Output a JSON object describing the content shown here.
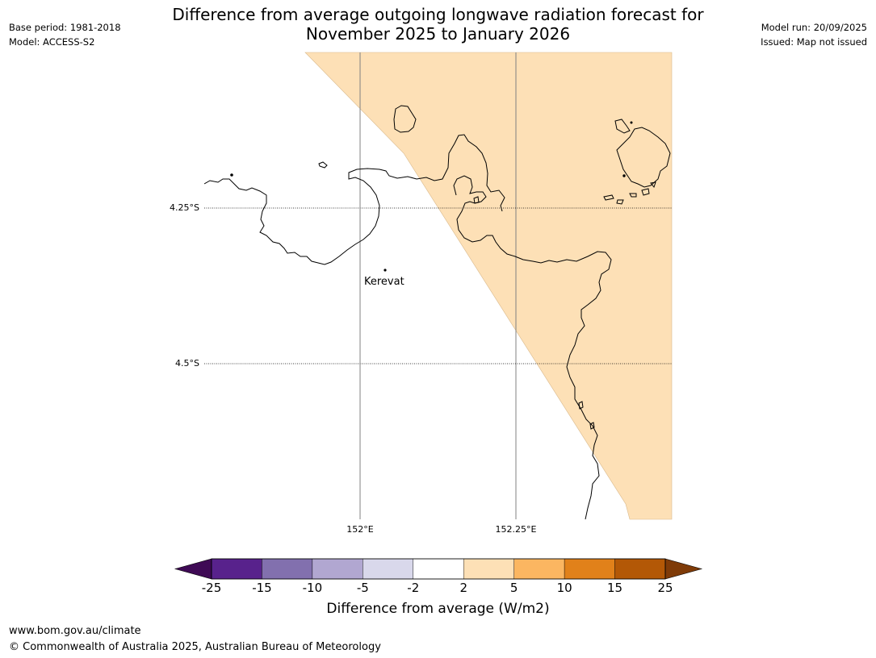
{
  "header": {
    "title_line1": "Difference from average outgoing longwave radiation forecast for",
    "title_line2": "November 2025 to January 2026",
    "base_period": "Base period: 1981-2018",
    "model": "Model: ACCESS-S2",
    "model_run": "Model run: 20/09/2025",
    "issued": "Issued: Map not issued"
  },
  "map": {
    "lat_labels": [
      "4.25°S",
      "4.5°S"
    ],
    "lon_labels": [
      "152°E",
      "152.25°E"
    ],
    "place": {
      "name": "Kerevat"
    },
    "anomaly_fill_color": "#fde0b6",
    "land_outline_color": "#000000"
  },
  "colorbar": {
    "label": "Difference from average (W/m2)",
    "ticks": [
      "-25",
      "-15",
      "-10",
      "-5",
      "-2",
      "2",
      "5",
      "10",
      "15",
      "25"
    ],
    "colors": [
      "#3f0a55",
      "#58228c",
      "#8270ae",
      "#b1a7d1",
      "#d9d8eb",
      "#ffffff",
      "#fde0b6",
      "#fbb661",
      "#e1811a",
      "#b35806",
      "#7f3b08"
    ]
  },
  "footer": {
    "url": "www.bom.gov.au/climate",
    "copyright": "© Commonwealth of Australia 2025, Australian Bureau of Meteorology"
  }
}
